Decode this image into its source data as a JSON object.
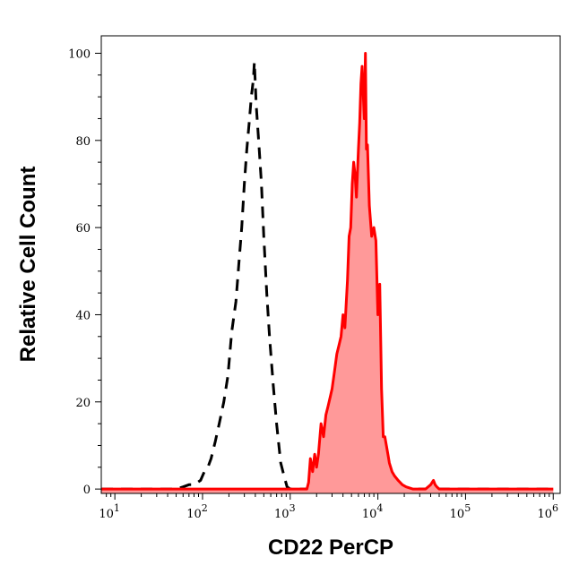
{
  "chart_data": {
    "type": "area",
    "xlabel": "CD22 PerCP",
    "ylabel": "Relative Cell Count",
    "x_scale": "log10",
    "xlim": [
      7,
      1200000
    ],
    "ylim": [
      -1,
      104
    ],
    "y_ticks": [
      0,
      20,
      40,
      60,
      80,
      100
    ],
    "x_ticks": [
      {
        "base": "10",
        "exp": "1",
        "value": 10
      },
      {
        "base": "10",
        "exp": "2",
        "value": 100
      },
      {
        "base": "10",
        "exp": "3",
        "value": 1000
      },
      {
        "base": "10",
        "exp": "4",
        "value": 10000
      },
      {
        "base": "10",
        "exp": "5",
        "value": 100000
      },
      {
        "base": "10",
        "exp": "6",
        "value": 1000000
      }
    ],
    "grid": false,
    "series": [
      {
        "style": "dashed",
        "color": "#000000",
        "x": [
          7,
          50,
          60,
          70,
          80,
          95,
          105,
          115,
          125,
          140,
          155,
          175,
          195,
          215,
          240,
          260,
          280,
          300,
          320,
          340,
          360,
          380,
          390,
          410,
          440,
          470,
          500,
          540,
          580,
          640,
          700,
          780,
          850,
          920,
          1000,
          1200,
          1000000
        ],
        "y": [
          0,
          0,
          0.5,
          1,
          1,
          2,
          4,
          5,
          7,
          11,
          15,
          20,
          26,
          36,
          43,
          52,
          60,
          70,
          78,
          84,
          90,
          94,
          98,
          88,
          79,
          70,
          58,
          45,
          35,
          24,
          15,
          6,
          3,
          0.5,
          0,
          0,
          0
        ]
      },
      {
        "style": "filled",
        "color": "#ff0000",
        "fill": "#ff9999",
        "x": [
          7,
          1550,
          1620,
          1700,
          1800,
          1900,
          2000,
          2100,
          2250,
          2400,
          2550,
          2700,
          2850,
          3000,
          3200,
          3400,
          3600,
          3800,
          4000,
          4200,
          4500,
          4700,
          4900,
          5100,
          5300,
          5500,
          5700,
          6000,
          6200,
          6400,
          6600,
          6800,
          7000,
          7200,
          7400,
          7600,
          8000,
          8500,
          9000,
          9500,
          10000,
          10500,
          11000,
          11500,
          12000,
          12500,
          13000,
          13500,
          14500,
          15500,
          17000,
          19000,
          21000,
          25000,
          30000,
          35000,
          40000,
          43000,
          45000,
          47000,
          50000,
          1000000
        ],
        "y": [
          0,
          0,
          1.5,
          7,
          4,
          8,
          5,
          8,
          15,
          12,
          17,
          19,
          21,
          23,
          27,
          31,
          33,
          35,
          40,
          37,
          48,
          58,
          60,
          70,
          75,
          72,
          67,
          78,
          84,
          93,
          97,
          91,
          85,
          100,
          78,
          79,
          65,
          58,
          60,
          57,
          40,
          47,
          23,
          12,
          12,
          10,
          8,
          6,
          4,
          3,
          2,
          1,
          0.5,
          0,
          0,
          0,
          1,
          2,
          1,
          0.5,
          0,
          0
        ]
      }
    ]
  }
}
